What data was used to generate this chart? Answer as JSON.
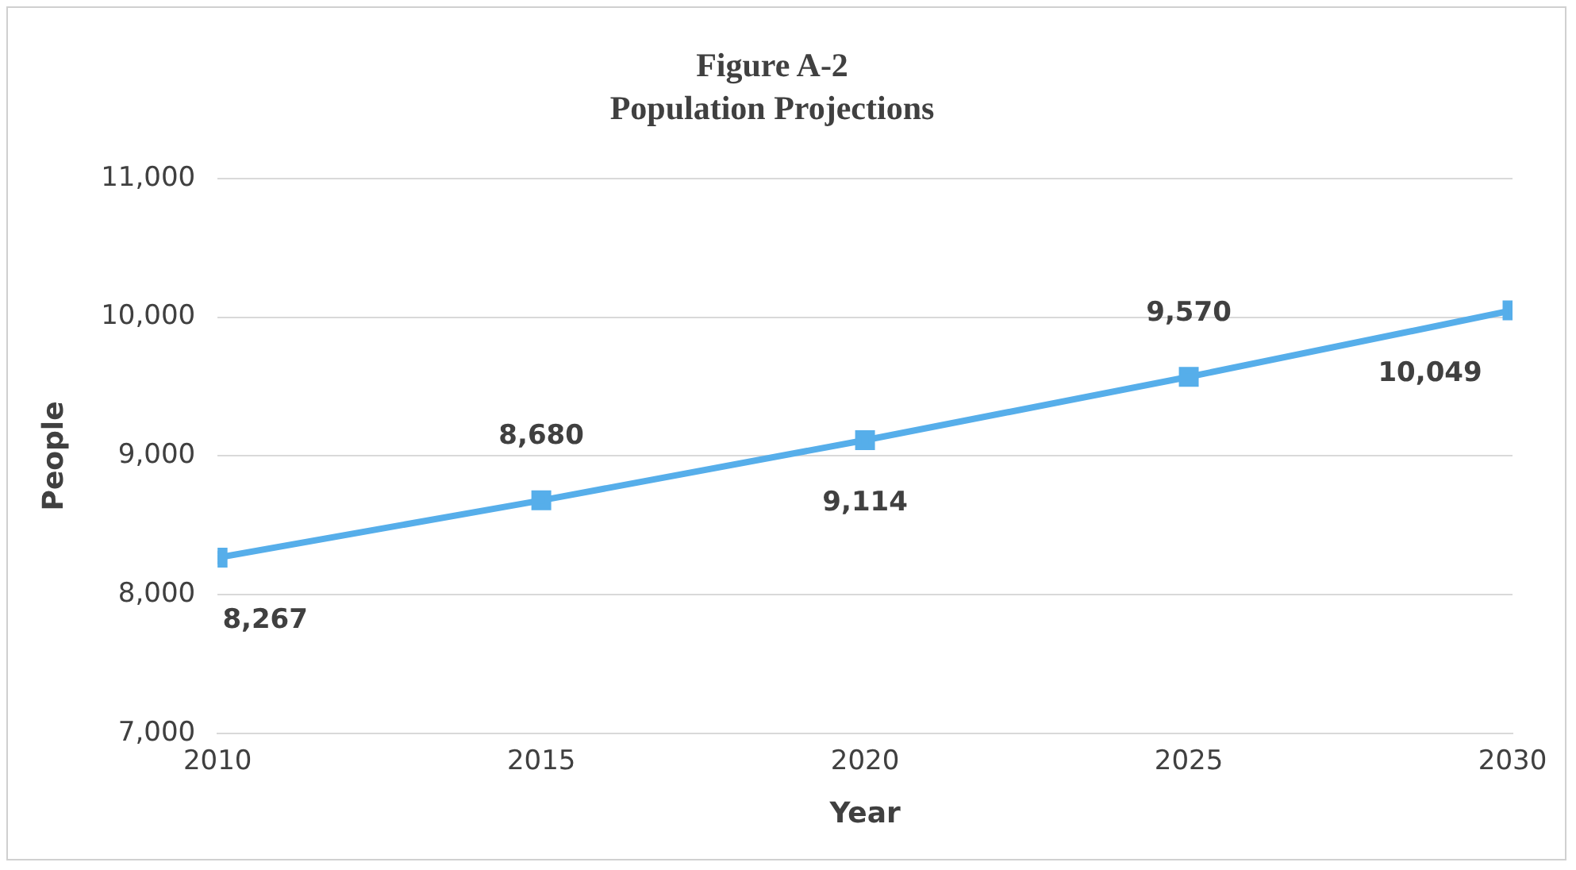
{
  "chart_data": {
    "type": "line",
    "title": "Figure A-2",
    "subtitle": "Population Projections",
    "xlabel": "Year",
    "ylabel": "People",
    "x": [
      2010,
      2015,
      2020,
      2025,
      2030
    ],
    "series": [
      {
        "color": "#56aeea",
        "values": [
          8267,
          8680,
          9114,
          9570,
          10049
        ],
        "value_labels": [
          "8,267",
          "8,680",
          "9,114",
          "9,570",
          "10,049"
        ]
      }
    ],
    "xlim": [
      2010,
      2030
    ],
    "xticks": [
      2010,
      2015,
      2020,
      2025,
      2030
    ],
    "ylim": [
      7000,
      11000
    ],
    "yticks": [
      {
        "value": 7000,
        "label": "7,000"
      },
      {
        "value": 8000,
        "label": "8,000"
      },
      {
        "value": 9000,
        "label": "9,000"
      },
      {
        "value": 10000,
        "label": "10,000"
      },
      {
        "value": 11000,
        "label": "11,000"
      }
    ],
    "grid": "y",
    "marker": "square",
    "line_style": "solid",
    "legend": false
  }
}
